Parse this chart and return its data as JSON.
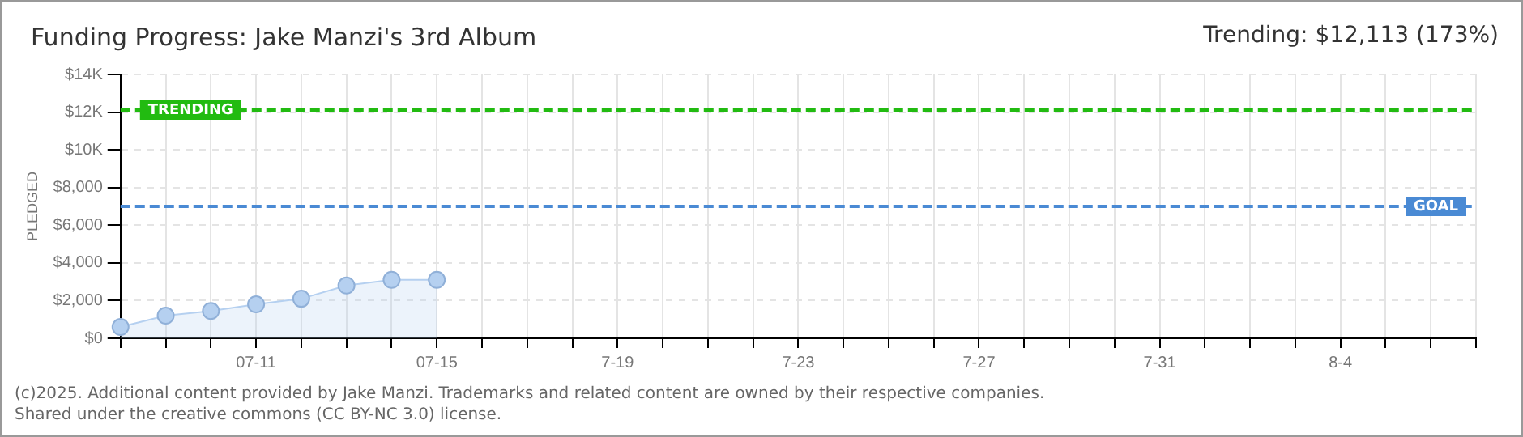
{
  "chart_data": {
    "type": "area",
    "title": "Funding Progress: Jake Manzi's 3rd Album",
    "ylabel": "PLEDGED",
    "annotations": [
      "Trending: $12,113 (173%)",
      "(c)2025. Additional content provided by Jake Manzi. Trademarks and related content are owned by their respective companies.",
      "Shared under the creative commons (CC BY-NC 3.0) license."
    ],
    "categories": [
      null,
      null,
      null,
      "07-11",
      null,
      null,
      null,
      "07-15",
      null,
      null,
      null,
      "7-19",
      null,
      null,
      null,
      "7-23",
      null,
      null,
      null,
      "7-27",
      null,
      null,
      null,
      "7-31",
      null,
      null,
      null,
      "8-4",
      null,
      null,
      null
    ],
    "series": [
      {
        "color": "#b5d0f0",
        "values": [
          600,
          1200,
          1450,
          1800,
          2100,
          2800,
          3100,
          3100,
          null,
          null,
          null,
          null,
          null,
          null,
          null,
          null,
          null,
          null,
          null,
          null,
          null,
          null,
          null,
          null,
          null,
          null,
          null,
          null,
          null,
          null,
          null
        ]
      }
    ],
    "ylim": [
      0,
      14000
    ],
    "yticks": [
      {
        "value": 0,
        "label": "$0"
      },
      {
        "value": 2000,
        "label": "$2,000"
      },
      {
        "value": 4000,
        "label": "$4,000"
      },
      {
        "value": 6000,
        "label": "$6,000"
      },
      {
        "value": 8000,
        "label": "$8,000"
      },
      {
        "value": 10000,
        "label": "$10K"
      },
      {
        "value": 12000,
        "label": "$12K"
      },
      {
        "value": 14000,
        "label": "$14K"
      }
    ],
    "ref_lines": [
      {
        "axis": "y",
        "value": 12113,
        "label": "TRENDING",
        "color": "#22bb11",
        "line_style": "dashed"
      },
      {
        "axis": "y",
        "value": 7000,
        "label": "GOAL",
        "color": "#4a8ad4",
        "line_style": "dashed"
      }
    ],
    "grid": true,
    "marker": "circle",
    "legend": false
  }
}
